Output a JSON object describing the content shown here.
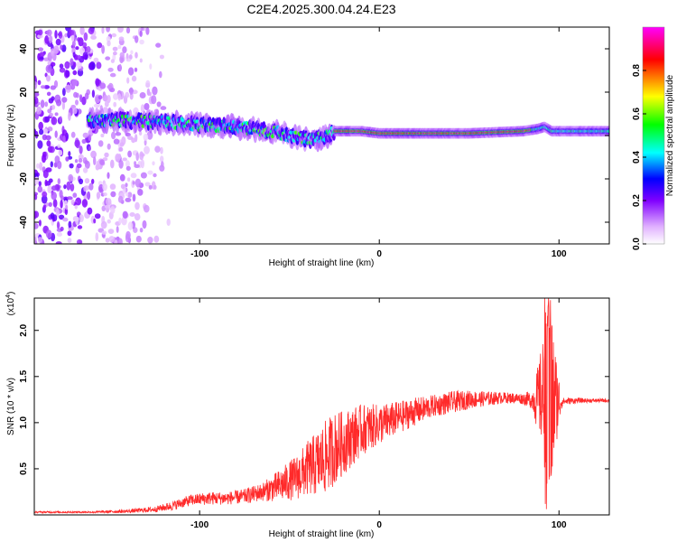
{
  "title": "C2E4.2025.300.04.24.E23",
  "chart_data": [
    {
      "type": "heatmap",
      "xlabel": "Height of straight line (km)",
      "ylabel": "Frequency (Hz)",
      "xlim": [
        -192,
        128
      ],
      "ylim": [
        -50,
        50
      ],
      "xticks": [
        -100,
        0,
        100
      ],
      "xtick_labels": [
        "-100",
        "0",
        "100"
      ],
      "yticks": [
        -40,
        -20,
        0,
        20,
        40
      ],
      "ytick_labels": [
        "-40",
        "-20",
        "0",
        "20",
        "40"
      ],
      "colorbar": {
        "label": "Normalized spectral amplitude",
        "range": [
          0,
          1
        ],
        "ticks": [
          0,
          0.2,
          0.4,
          0.6,
          0.8
        ],
        "tick_labels": [
          "0.0",
          "0.2",
          "0.4",
          "0.6",
          "0.8"
        ],
        "colors": [
          "#ffffff",
          "#e0b0ff",
          "#8000ff",
          "#0000ff",
          "#00ffff",
          "#00ff00",
          "#ffff00",
          "#ff0000",
          "#ff00ff"
        ]
      },
      "ridge": {
        "x": [
          -162,
          -140,
          -120,
          -100,
          -80,
          -60,
          -50,
          -40,
          -30,
          -25,
          -10,
          0,
          20,
          50,
          80,
          88,
          92,
          96,
          100,
          128
        ],
        "y": [
          7,
          7,
          6,
          5,
          4,
          2,
          0,
          -2,
          -1,
          2,
          2,
          1,
          1,
          1,
          2,
          3,
          4,
          2,
          2,
          2
        ]
      }
    },
    {
      "type": "line",
      "xlabel": "Height of straight line (km)",
      "ylabel": "SNR (10 * v/v)",
      "multiplier": "(x10",
      "multiplier_exp": "4",
      "multiplier_close": ")",
      "xlim": [
        -192,
        128
      ],
      "ylim": [
        0,
        2.35
      ],
      "xticks": [
        -100,
        0,
        100
      ],
      "xtick_labels": [
        "-100",
        "0",
        "100"
      ],
      "yticks": [
        0.5,
        1.0,
        1.5,
        2.0
      ],
      "ytick_labels": [
        "0.5",
        "1.0",
        "1.5",
        "2.0"
      ],
      "series": [
        {
          "name": "SNR",
          "color": "#ff2a2a",
          "x": [
            -192,
            -160,
            -140,
            -125,
            -115,
            -105,
            -95,
            -85,
            -75,
            -65,
            -55,
            -45,
            -40,
            -35,
            -30,
            -25,
            -20,
            -15,
            -10,
            0,
            10,
            20,
            30,
            40,
            50,
            60,
            70,
            80,
            85,
            88,
            91,
            93,
            95,
            97,
            99,
            102,
            110,
            120,
            128
          ],
          "mean": [
            0.03,
            0.03,
            0.04,
            0.06,
            0.1,
            0.16,
            0.18,
            0.18,
            0.2,
            0.25,
            0.32,
            0.42,
            0.5,
            0.55,
            0.62,
            0.72,
            0.78,
            0.85,
            0.92,
            0.98,
            1.05,
            1.12,
            1.18,
            1.22,
            1.25,
            1.26,
            1.27,
            1.26,
            1.25,
            1.25,
            1.3,
            1.25,
            1.2,
            1.25,
            1.24,
            1.23,
            1.24,
            1.24,
            1.24
          ],
          "amp": [
            0.01,
            0.01,
            0.02,
            0.03,
            0.05,
            0.06,
            0.07,
            0.07,
            0.08,
            0.1,
            0.18,
            0.25,
            0.3,
            0.35,
            0.4,
            0.4,
            0.35,
            0.32,
            0.28,
            0.22,
            0.18,
            0.15,
            0.12,
            0.12,
            0.1,
            0.08,
            0.06,
            0.06,
            0.1,
            0.35,
            0.6,
            1.1,
            1.1,
            0.8,
            0.4,
            0.04,
            0.03,
            0.02,
            0.02
          ],
          "max": 2.35,
          "min": 0.05
        }
      ]
    }
  ]
}
